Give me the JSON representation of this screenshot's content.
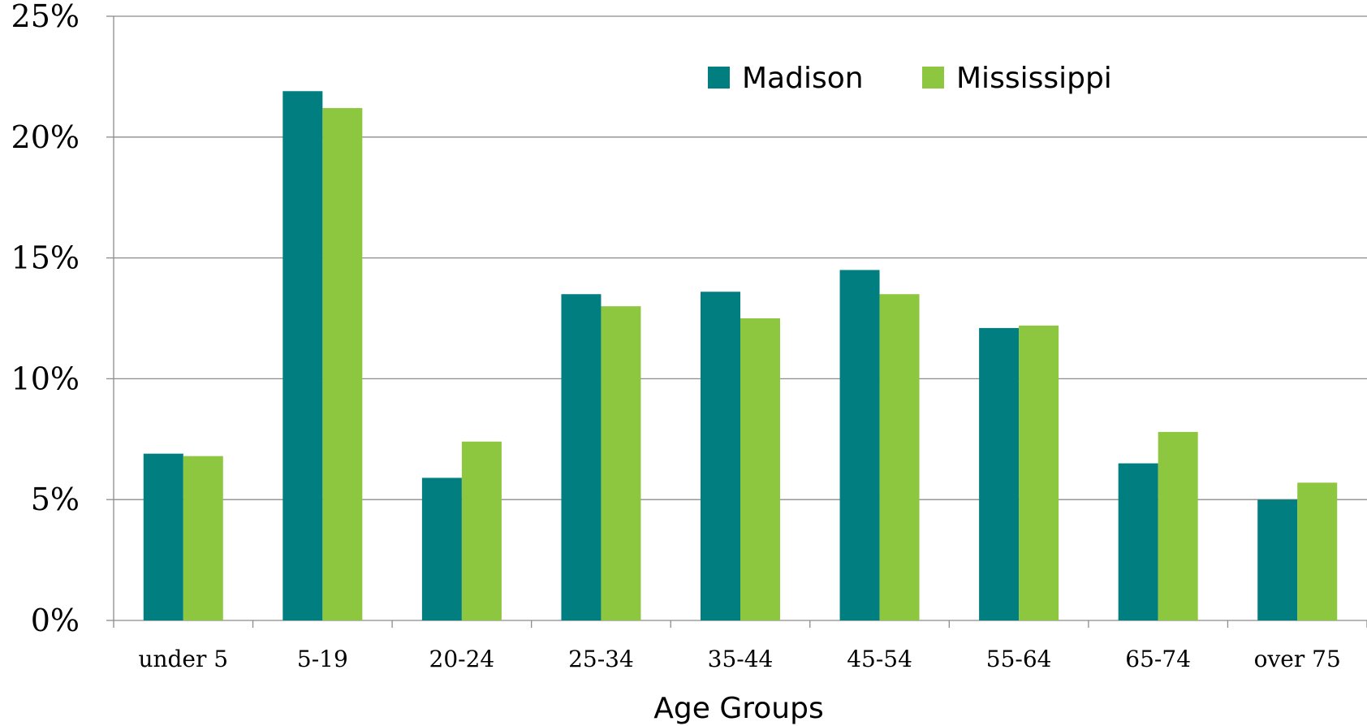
{
  "chart_data": {
    "type": "bar",
    "xlabel": "Age Groups",
    "ylabel": "",
    "ylim": [
      0,
      25
    ],
    "yticks": [
      "0%",
      "5%",
      "10%",
      "15%",
      "20%",
      "25%"
    ],
    "grid": true,
    "legend_position": "top-right",
    "categories": [
      "under 5",
      "5-19",
      "20-24",
      "25-34",
      "35-44",
      "45-54",
      "55-64",
      "65-74",
      "over 75"
    ],
    "series": [
      {
        "name": "Madison",
        "color": "#007E80",
        "values": [
          6.9,
          21.9,
          5.9,
          13.5,
          13.6,
          14.5,
          12.1,
          6.5,
          5.0
        ]
      },
      {
        "name": "Mississippi",
        "color": "#8DC63F",
        "values": [
          6.8,
          21.2,
          7.4,
          13.0,
          12.5,
          13.5,
          12.2,
          7.8,
          5.7
        ]
      }
    ]
  }
}
